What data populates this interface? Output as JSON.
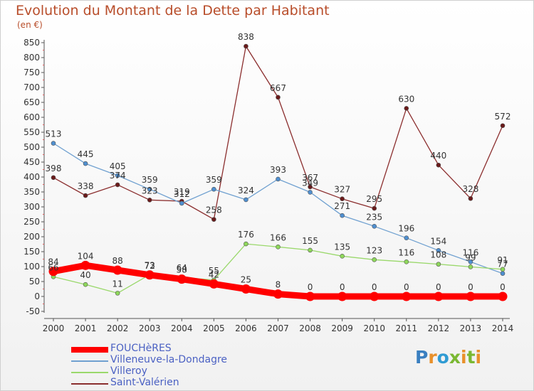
{
  "header": {
    "title": "Evolution du Montant de la Dette par Habitant",
    "unit": "(en €)"
  },
  "logo": {
    "text": "Proxiti",
    "letter_colors": [
      "#3a7fc0",
      "#e8902a",
      "#2f9bd3",
      "#7ab832",
      "#e8902a",
      "#7ab832",
      "#e8902a"
    ]
  },
  "chart_data": {
    "type": "line",
    "title": "Evolution du Montant de la Dette par Habitant",
    "subtitle": "(en €)",
    "x": [
      "2000",
      "2001",
      "2002",
      "2003",
      "2004",
      "2005",
      "2006",
      "2007",
      "2008",
      "2009",
      "2010",
      "2011",
      "2012",
      "2013",
      "2014"
    ],
    "ylim": [
      -50,
      850
    ],
    "yticks": [
      -50,
      0,
      50,
      100,
      150,
      200,
      250,
      300,
      350,
      400,
      450,
      500,
      550,
      600,
      650,
      700,
      750,
      800,
      850
    ],
    "grid": false,
    "legend_position": "bottom-left",
    "series": [
      {
        "name": "FOUCHèRES",
        "color": "#ff0000",
        "values": [
          84,
          104,
          88,
          72,
          58,
          42,
          25,
          8,
          0,
          0,
          0,
          0,
          0,
          0,
          0
        ],
        "labels": [
          "84",
          "104",
          "88",
          "72",
          "58",
          "42",
          "25",
          "8",
          "0",
          "0",
          "0",
          "0",
          "0",
          "0",
          "0"
        ]
      },
      {
        "name": "Villeneuve-la-Dondagre",
        "color": "#6fa0d0",
        "values": [
          513,
          445,
          405,
          359,
          312,
          359,
          324,
          393,
          349,
          271,
          235,
          196,
          154,
          116,
          77
        ],
        "labels": [
          "513",
          "445",
          "405",
          "359",
          "312",
          "359",
          "324",
          "393",
          "349",
          "271",
          "235",
          "196",
          "154",
          "116",
          "77"
        ]
      },
      {
        "name": "Villeroy",
        "color": "#9ad86b",
        "values": [
          66,
          40,
          11,
          73,
          64,
          55,
          176,
          166,
          155,
          135,
          123,
          116,
          108,
          99,
          91
        ],
        "labels": [
          "66",
          "40",
          "11",
          "73",
          "64",
          "55",
          "176",
          "166",
          "155",
          "135",
          "123",
          "116",
          "108",
          "99",
          "91"
        ]
      },
      {
        "name": "Saint-Valérien",
        "color": "#8b2e2e",
        "values": [
          398,
          338,
          374,
          323,
          319,
          258,
          838,
          667,
          367,
          327,
          295,
          630,
          440,
          328,
          572
        ],
        "labels": [
          "398",
          "338",
          "374",
          "323",
          "319",
          "258",
          "838",
          "667",
          "367",
          "327",
          "295",
          "630",
          "440",
          "328",
          "572"
        ]
      }
    ]
  }
}
